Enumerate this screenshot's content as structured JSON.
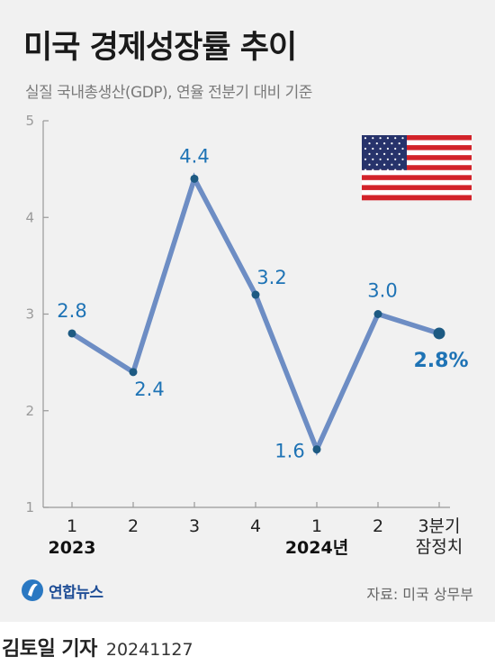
{
  "title": "미국 경제성장률 추이",
  "subtitle": "실질 국내총생산(GDP), 연율 전분기 대비 기준",
  "source": "자료: 미국 상무부",
  "logo": "연합뉴스",
  "byline": {
    "author": "김토일 기자",
    "date": "20241127"
  },
  "colors": {
    "line": "#6d8dc4",
    "point": "#1d5a82",
    "label": "#1e73b5",
    "axis": "#999999",
    "background": "#f1f1f1"
  },
  "icons": {
    "flag": "us-flag-icon",
    "logo": "yonhap-logo-icon"
  },
  "chart_data": {
    "type": "line",
    "title": "미국 경제성장률 추이",
    "ylabel": "",
    "ylim": [
      1,
      5
    ],
    "yticks": [
      1,
      2,
      3,
      4,
      5
    ],
    "grid": false,
    "categories": [
      "1",
      "2",
      "3",
      "4",
      "1",
      "2",
      "3분기\n잠정치"
    ],
    "year_labels": [
      {
        "text": "2023",
        "index": 0
      },
      {
        "text": "2024년",
        "index": 4
      }
    ],
    "series": [
      {
        "values": [
          2.8,
          2.4,
          4.4,
          3.2,
          1.6,
          3.0,
          2.8
        ],
        "data_labels": [
          "2.8",
          "2.4",
          "4.4",
          "3.2",
          "1.6",
          "3.0",
          "2.8%"
        ]
      }
    ]
  }
}
